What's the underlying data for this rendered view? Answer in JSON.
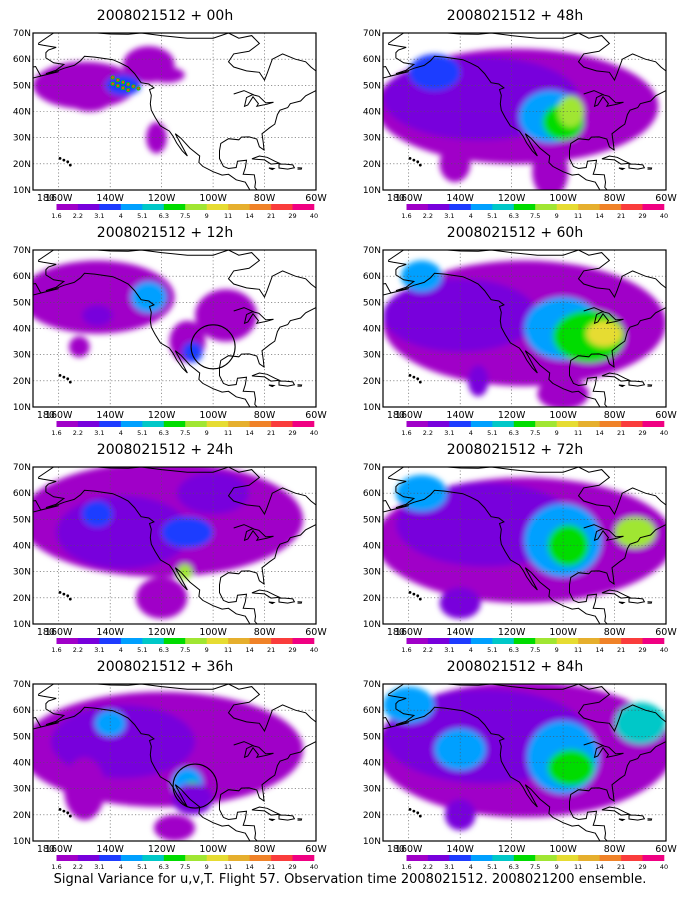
{
  "figure": {
    "caption": "Signal Variance for u,v,T. Flight 57. Observation time 2008021512. 2008021200 ensemble."
  },
  "map": {
    "lat_labels": [
      "70N",
      "60N",
      "50N",
      "40N",
      "30N",
      "20N",
      "10N"
    ],
    "lon_labels": [
      "180",
      "160W",
      "140W",
      "120W",
      "100W",
      "80W",
      "60W"
    ],
    "domain": {
      "lon_range": [
        -170,
        -60
      ],
      "lat_range": [
        10,
        70
      ],
      "grid": "dotted"
    }
  },
  "colorbar": {
    "labels": [
      "1.6",
      "2.2",
      "3.1",
      "4",
      "5.1",
      "6.3",
      "7.5",
      "9",
      "11",
      "14",
      "21",
      "29",
      "40"
    ],
    "colors": [
      "#ffffff",
      "#a000c8",
      "#7800dc",
      "#1e3cff",
      "#00a0ff",
      "#00c8c8",
      "#00dc00",
      "#a0e632",
      "#e6dc32",
      "#e6af2d",
      "#f08228",
      "#fa3c3c",
      "#f00082"
    ]
  },
  "panels": [
    {
      "title": "2008021512 + 00h",
      "circle": false,
      "obs_track": true
    },
    {
      "title": "2008021512 + 48h",
      "circle": false,
      "obs_track": false
    },
    {
      "title": "2008021512 + 12h",
      "circle": true,
      "obs_track": false
    },
    {
      "title": "2008021512 + 60h",
      "circle": false,
      "obs_track": false
    },
    {
      "title": "2008021512 + 24h",
      "circle": false,
      "obs_track": false
    },
    {
      "title": "2008021512 + 72h",
      "circle": false,
      "obs_track": false
    },
    {
      "title": "2008021512 + 36h",
      "circle": true,
      "obs_track": false
    },
    {
      "title": "2008021512 + 84h",
      "circle": false,
      "obs_track": false
    }
  ]
}
